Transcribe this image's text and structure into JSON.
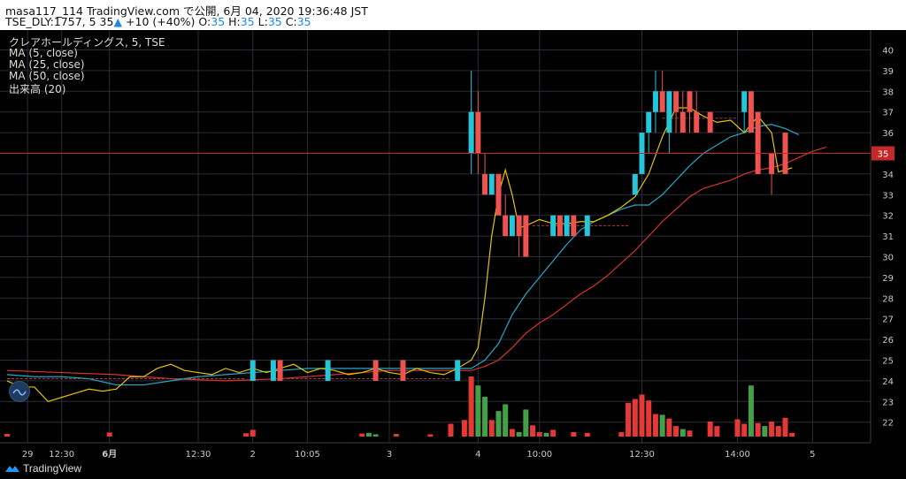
{
  "header": {
    "line1": "masa117_114 TradingView.com で公開, 6月 04, 2020 19:36:48 JST",
    "sym": "TSE_DLY:1757, 5",
    "last": "35",
    "change": "+10 (+40%)",
    "o_label": "O:",
    "o": "35",
    "h_label": "H:",
    "h": "35",
    "l_label": "L:",
    "l": "35",
    "c_label": "C:",
    "c": "35"
  },
  "legend": {
    "title": "クレアホールディングス, 5, TSE",
    "ma5": "MA (5, close)",
    "ma25": "MA (25, close)",
    "ma50": "MA (50, close)",
    "volume": "出来高 (20)"
  },
  "footer": {
    "brand": "TradingView"
  },
  "colors": {
    "background": "#000000",
    "grid": "#2a2e39",
    "up": "#26c6da",
    "down": "#ef5350",
    "ma5": "#e6c300",
    "ma25": "#26a8c9",
    "ma50": "#d8352b",
    "vol_up": "#43a047",
    "vol_down": "#e53935",
    "price_line": "#c62828"
  },
  "chart_data": {
    "type": "candlestick",
    "title": "クレアホールディングス, 5, TSE",
    "y_axis": {
      "position": "right",
      "range": [
        21.5,
        40.5
      ],
      "ticks": [
        22,
        23,
        24,
        25,
        26,
        27,
        28,
        29,
        30,
        31,
        32,
        33,
        34,
        35,
        36,
        37,
        38,
        39,
        40
      ]
    },
    "x_axis": {
      "ticks": [
        {
          "x": 3,
          "label": "29",
          "bold": false
        },
        {
          "x": 8,
          "label": "12:30",
          "bold": false
        },
        {
          "x": 15,
          "label": "6月",
          "bold": true
        },
        {
          "x": 28,
          "label": "12:30",
          "bold": false
        },
        {
          "x": 36,
          "label": "2",
          "bold": false
        },
        {
          "x": 44,
          "label": "10:05",
          "bold": false
        },
        {
          "x": 56,
          "label": "3",
          "bold": false
        },
        {
          "x": 69,
          "label": "4",
          "bold": false
        },
        {
          "x": 78,
          "label": "10:00",
          "bold": false
        },
        {
          "x": 93,
          "label": "12:30",
          "bold": false
        },
        {
          "x": 107,
          "label": "14:00",
          "bold": false
        },
        {
          "x": 118,
          "label": "5",
          "bold": false
        }
      ]
    },
    "last_price": 35,
    "candles": [
      {
        "x": 36,
        "o": 24,
        "h": 25,
        "l": 24,
        "c": 25
      },
      {
        "x": 39,
        "o": 24,
        "h": 25,
        "l": 24,
        "c": 25
      },
      {
        "x": 40,
        "o": 25,
        "h": 25,
        "l": 24,
        "c": 24
      },
      {
        "x": 47,
        "o": 24,
        "h": 25,
        "l": 24,
        "c": 25
      },
      {
        "x": 54,
        "o": 25,
        "h": 25,
        "l": 24,
        "c": 24
      },
      {
        "x": 58,
        "o": 25,
        "h": 25,
        "l": 24,
        "c": 24
      },
      {
        "x": 66,
        "o": 24,
        "h": 25,
        "l": 24,
        "c": 25
      },
      {
        "x": 68,
        "o": 35,
        "h": 39,
        "l": 34,
        "c": 37
      },
      {
        "x": 69,
        "o": 37,
        "h": 38,
        "l": 34,
        "c": 35
      },
      {
        "x": 70,
        "o": 34,
        "h": 35,
        "l": 33,
        "c": 33
      },
      {
        "x": 71,
        "o": 33,
        "h": 34,
        "l": 33,
        "c": 34
      },
      {
        "x": 72,
        "o": 34,
        "h": 34,
        "l": 32,
        "c": 32
      },
      {
        "x": 73,
        "o": 32,
        "h": 33,
        "l": 31,
        "c": 31
      },
      {
        "x": 74,
        "o": 31,
        "h": 32,
        "l": 31,
        "c": 32
      },
      {
        "x": 75,
        "o": 32,
        "h": 32,
        "l": 30,
        "c": 31
      },
      {
        "x": 76,
        "o": 32,
        "h": 32,
        "l": 30,
        "c": 30
      },
      {
        "x": 80,
        "o": 31,
        "h": 32,
        "l": 31,
        "c": 32
      },
      {
        "x": 81,
        "o": 32,
        "h": 32,
        "l": 31,
        "c": 31
      },
      {
        "x": 82,
        "o": 31,
        "h": 32,
        "l": 31,
        "c": 32
      },
      {
        "x": 83,
        "o": 32,
        "h": 32,
        "l": 31,
        "c": 31
      },
      {
        "x": 85,
        "o": 31,
        "h": 32,
        "l": 31,
        "c": 32
      },
      {
        "x": 92,
        "o": 33,
        "h": 34,
        "l": 33,
        "c": 34
      },
      {
        "x": 93,
        "o": 34,
        "h": 36,
        "l": 34,
        "c": 36
      },
      {
        "x": 94,
        "o": 36,
        "h": 37,
        "l": 35,
        "c": 37
      },
      {
        "x": 95,
        "o": 37,
        "h": 39,
        "l": 36,
        "c": 38
      },
      {
        "x": 96,
        "o": 38,
        "h": 39,
        "l": 37,
        "c": 37
      },
      {
        "x": 97,
        "o": 36,
        "h": 38,
        "l": 35,
        "c": 38
      },
      {
        "x": 98,
        "o": 38,
        "h": 38,
        "l": 36,
        "c": 37
      },
      {
        "x": 99,
        "o": 37,
        "h": 38,
        "l": 36,
        "c": 36
      },
      {
        "x": 100,
        "o": 38,
        "h": 38,
        "l": 36,
        "c": 37
      },
      {
        "x": 101,
        "o": 37,
        "h": 38,
        "l": 36,
        "c": 36
      },
      {
        "x": 103,
        "o": 37,
        "h": 37,
        "l": 36,
        "c": 36
      },
      {
        "x": 108,
        "o": 37,
        "h": 38,
        "l": 36,
        "c": 38
      },
      {
        "x": 109,
        "o": 38,
        "h": 38,
        "l": 36,
        "c": 36
      },
      {
        "x": 110,
        "o": 37,
        "h": 37,
        "l": 34,
        "c": 34
      },
      {
        "x": 112,
        "o": 35,
        "h": 35,
        "l": 33,
        "c": 34
      },
      {
        "x": 114,
        "o": 36,
        "h": 36,
        "l": 34,
        "c": 34
      }
    ],
    "flat_series": [
      {
        "from": 0,
        "to": 35,
        "y": 24.1
      },
      {
        "from": 41,
        "to": 65,
        "y": 24.1
      },
      {
        "from": 77,
        "to": 91,
        "y": 31.5
      },
      {
        "from": 96,
        "to": 107,
        "y": 36.7
      }
    ],
    "ma5": [
      [
        0,
        24.0
      ],
      [
        2,
        23.7
      ],
      [
        4,
        23.7
      ],
      [
        6,
        23.0
      ],
      [
        8,
        23.2
      ],
      [
        10,
        23.4
      ],
      [
        12,
        23.6
      ],
      [
        14,
        23.5
      ],
      [
        16,
        23.6
      ],
      [
        18,
        24.2
      ],
      [
        20,
        24.2
      ],
      [
        22,
        24.6
      ],
      [
        24,
        24.8
      ],
      [
        26,
        24.5
      ],
      [
        28,
        24.4
      ],
      [
        30,
        24.3
      ],
      [
        32,
        24.6
      ],
      [
        34,
        24.4
      ],
      [
        36,
        24.6
      ],
      [
        38,
        24.4
      ],
      [
        40,
        24.6
      ],
      [
        42,
        24.8
      ],
      [
        44,
        24.4
      ],
      [
        46,
        24.6
      ],
      [
        48,
        24.5
      ],
      [
        50,
        24.3
      ],
      [
        52,
        24.4
      ],
      [
        54,
        24.6
      ],
      [
        56,
        24.4
      ],
      [
        58,
        24.3
      ],
      [
        60,
        24.6
      ],
      [
        62,
        24.4
      ],
      [
        64,
        24.3
      ],
      [
        66,
        24.6
      ],
      [
        68,
        25.0
      ],
      [
        69,
        25.6
      ],
      [
        70,
        28.0
      ],
      [
        71,
        31.0
      ],
      [
        72,
        33.0
      ],
      [
        73,
        34.2
      ],
      [
        74,
        33.0
      ],
      [
        75,
        31.4
      ],
      [
        76,
        31.5
      ],
      [
        78,
        31.8
      ],
      [
        80,
        31.6
      ],
      [
        82,
        31.6
      ],
      [
        84,
        31.7
      ],
      [
        86,
        31.7
      ],
      [
        88,
        32.0
      ],
      [
        90,
        32.4
      ],
      [
        92,
        32.9
      ],
      [
        94,
        34.0
      ],
      [
        96,
        35.8
      ],
      [
        98,
        37.2
      ],
      [
        100,
        37.2
      ],
      [
        102,
        36.8
      ],
      [
        104,
        36.5
      ],
      [
        106,
        36.6
      ],
      [
        108,
        36.0
      ],
      [
        110,
        36.8
      ],
      [
        112,
        36.0
      ],
      [
        113,
        34.1
      ],
      [
        114,
        34.2
      ],
      [
        115,
        34.3
      ]
    ],
    "ma25": [
      [
        0,
        24.3
      ],
      [
        4,
        24.2
      ],
      [
        8,
        24.2
      ],
      [
        12,
        24.1
      ],
      [
        16,
        23.8
      ],
      [
        20,
        23.8
      ],
      [
        24,
        24.0
      ],
      [
        28,
        24.2
      ],
      [
        32,
        24.3
      ],
      [
        36,
        24.4
      ],
      [
        40,
        24.5
      ],
      [
        44,
        24.6
      ],
      [
        48,
        24.6
      ],
      [
        52,
        24.6
      ],
      [
        56,
        24.6
      ],
      [
        60,
        24.6
      ],
      [
        64,
        24.6
      ],
      [
        68,
        24.6
      ],
      [
        70,
        25.0
      ],
      [
        72,
        25.8
      ],
      [
        74,
        27.2
      ],
      [
        76,
        28.2
      ],
      [
        78,
        29.0
      ],
      [
        80,
        29.8
      ],
      [
        82,
        30.6
      ],
      [
        84,
        31.3
      ],
      [
        86,
        31.7
      ],
      [
        88,
        32.0
      ],
      [
        90,
        32.3
      ],
      [
        92,
        32.5
      ],
      [
        94,
        32.5
      ],
      [
        96,
        33.0
      ],
      [
        98,
        33.7
      ],
      [
        100,
        34.4
      ],
      [
        102,
        35.0
      ],
      [
        104,
        35.4
      ],
      [
        106,
        35.8
      ],
      [
        108,
        36.0
      ],
      [
        110,
        36.3
      ],
      [
        112,
        36.4
      ],
      [
        114,
        36.2
      ],
      [
        116,
        35.9
      ]
    ],
    "ma50": [
      [
        0,
        24.5
      ],
      [
        8,
        24.4
      ],
      [
        16,
        24.3
      ],
      [
        24,
        24.1
      ],
      [
        32,
        24.0
      ],
      [
        40,
        24.1
      ],
      [
        48,
        24.3
      ],
      [
        56,
        24.5
      ],
      [
        64,
        24.5
      ],
      [
        68,
        24.5
      ],
      [
        70,
        24.7
      ],
      [
        72,
        25.0
      ],
      [
        74,
        25.6
      ],
      [
        76,
        26.3
      ],
      [
        78,
        26.8
      ],
      [
        80,
        27.2
      ],
      [
        82,
        27.7
      ],
      [
        84,
        28.2
      ],
      [
        86,
        28.6
      ],
      [
        88,
        29.1
      ],
      [
        90,
        29.7
      ],
      [
        92,
        30.3
      ],
      [
        94,
        31.0
      ],
      [
        96,
        31.7
      ],
      [
        98,
        32.3
      ],
      [
        100,
        32.9
      ],
      [
        102,
        33.3
      ],
      [
        104,
        33.5
      ],
      [
        106,
        33.7
      ],
      [
        108,
        34.0
      ],
      [
        110,
        34.2
      ],
      [
        112,
        34.3
      ],
      [
        114,
        34.5
      ],
      [
        116,
        34.8
      ],
      [
        118,
        35.1
      ],
      [
        120,
        35.3
      ]
    ],
    "volume": [
      {
        "x": 0,
        "v": 0.35,
        "up": false
      },
      {
        "x": 15,
        "v": 0.55,
        "up": false
      },
      {
        "x": 35,
        "v": 0.45,
        "up": false
      },
      {
        "x": 36,
        "v": 0.9,
        "up": false
      },
      {
        "x": 52,
        "v": 0.4,
        "up": false
      },
      {
        "x": 53,
        "v": 0.5,
        "up": true
      },
      {
        "x": 54,
        "v": 0.3,
        "up": true
      },
      {
        "x": 57,
        "v": 0.35,
        "up": false
      },
      {
        "x": 62,
        "v": 0.3,
        "up": false
      },
      {
        "x": 65,
        "v": 1.7,
        "up": false
      },
      {
        "x": 67,
        "v": 2.2,
        "up": false
      },
      {
        "x": 68,
        "v": 8.0,
        "up": false
      },
      {
        "x": 69,
        "v": 6.8,
        "up": true
      },
      {
        "x": 70,
        "v": 5.3,
        "up": true
      },
      {
        "x": 71,
        "v": 2.2,
        "up": false
      },
      {
        "x": 72,
        "v": 3.4,
        "up": true
      },
      {
        "x": 73,
        "v": 4.3,
        "up": true
      },
      {
        "x": 74,
        "v": 1.0,
        "up": false
      },
      {
        "x": 75,
        "v": 0.6,
        "up": true
      },
      {
        "x": 76,
        "v": 3.6,
        "up": true
      },
      {
        "x": 77,
        "v": 1.5,
        "up": false
      },
      {
        "x": 78,
        "v": 0.6,
        "up": false
      },
      {
        "x": 79,
        "v": 0.5,
        "up": true
      },
      {
        "x": 80,
        "v": 0.9,
        "up": false
      },
      {
        "x": 83,
        "v": 0.6,
        "up": false
      },
      {
        "x": 85,
        "v": 0.5,
        "up": false
      },
      {
        "x": 90,
        "v": 0.6,
        "up": false
      },
      {
        "x": 91,
        "v": 4.5,
        "up": false
      },
      {
        "x": 92,
        "v": 5.0,
        "up": false
      },
      {
        "x": 93,
        "v": 5.6,
        "up": false
      },
      {
        "x": 94,
        "v": 4.8,
        "up": false
      },
      {
        "x": 95,
        "v": 3.0,
        "up": false
      },
      {
        "x": 96,
        "v": 2.9,
        "up": true
      },
      {
        "x": 97,
        "v": 2.4,
        "up": false
      },
      {
        "x": 98,
        "v": 1.4,
        "up": false
      },
      {
        "x": 99,
        "v": 1.0,
        "up": true
      },
      {
        "x": 100,
        "v": 0.8,
        "up": false
      },
      {
        "x": 103,
        "v": 2.0,
        "up": false
      },
      {
        "x": 104,
        "v": 1.4,
        "up": false
      },
      {
        "x": 107,
        "v": 2.3,
        "up": false
      },
      {
        "x": 108,
        "v": 1.7,
        "up": false
      },
      {
        "x": 109,
        "v": 6.8,
        "up": true
      },
      {
        "x": 110,
        "v": 1.8,
        "up": false
      },
      {
        "x": 111,
        "v": 1.4,
        "up": true
      },
      {
        "x": 112,
        "v": 2.0,
        "up": false
      },
      {
        "x": 113,
        "v": 1.4,
        "up": false
      },
      {
        "x": 114,
        "v": 2.5,
        "up": false
      },
      {
        "x": 115,
        "v": 0.5,
        "up": false
      }
    ]
  }
}
